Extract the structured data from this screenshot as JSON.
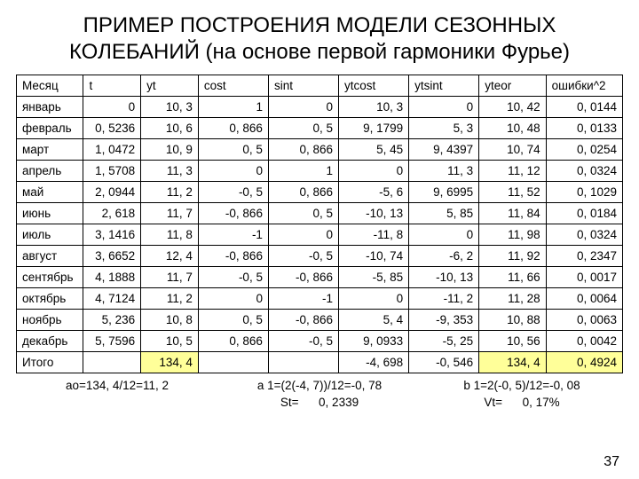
{
  "title": "ПРИМЕР ПОСТРОЕНИЯ МОДЕЛИ СЕЗОННЫХ КОЛЕБАНИЙ (на основе первой гармоники Фурье)",
  "page_number": "37",
  "table": {
    "columns": [
      "Месяц",
      "t",
      "yt",
      "cost",
      "sint",
      "ytcost",
      "ytsint",
      "yteor",
      "ошибки^2"
    ],
    "col_align": [
      "left",
      "right",
      "right",
      "right",
      "right",
      "right",
      "right",
      "right",
      "right"
    ],
    "rows": [
      [
        "январь",
        "0",
        "10, 3",
        "1",
        "0",
        "10, 3",
        "0",
        "10, 42",
        "0, 0144"
      ],
      [
        "февраль",
        "0, 5236",
        "10, 6",
        "0, 866",
        "0, 5",
        "9, 1799",
        "5, 3",
        "10, 48",
        "0, 0133"
      ],
      [
        "март",
        "1, 0472",
        "10, 9",
        "0, 5",
        "0, 866",
        "5, 45",
        "9, 4397",
        "10, 74",
        "0, 0254"
      ],
      [
        "апрель",
        "1, 5708",
        "11, 3",
        "0",
        "1",
        "0",
        "11, 3",
        "11, 12",
        "0, 0324"
      ],
      [
        "май",
        "2, 0944",
        "11, 2",
        "-0, 5",
        "0, 866",
        "-5, 6",
        "9, 6995",
        "11, 52",
        "0, 1029"
      ],
      [
        "июнь",
        "2, 618",
        "11, 7",
        "-0, 866",
        "0, 5",
        "-10, 13",
        "5, 85",
        "11, 84",
        "0, 0184"
      ],
      [
        "июль",
        "3, 1416",
        "11, 8",
        "-1",
        "0",
        "-11, 8",
        "0",
        "11, 98",
        "0, 0324"
      ],
      [
        "август",
        "3, 6652",
        "12, 4",
        "-0, 866",
        "-0, 5",
        "-10, 74",
        "-6, 2",
        "11, 92",
        "0, 2347"
      ],
      [
        "сентябрь",
        "4, 1888",
        "11, 7",
        "-0, 5",
        "-0, 866",
        "-5, 85",
        "-10, 13",
        "11, 66",
        "0, 0017"
      ],
      [
        "октябрь",
        "4, 7124",
        "11, 2",
        "0",
        "-1",
        "0",
        "-11, 2",
        "11, 28",
        "0, 0064"
      ],
      [
        "ноябрь",
        "5, 236",
        "10, 8",
        "0, 5",
        "-0, 866",
        "5, 4",
        "-9, 353",
        "10, 88",
        "0, 0063"
      ],
      [
        "декабрь",
        "5, 7596",
        "10, 5",
        "0, 866",
        "-0, 5",
        "9, 0933",
        "-5, 25",
        "10, 56",
        "0, 0042"
      ]
    ],
    "totals_row": [
      "Итого",
      "",
      "134, 4",
      "",
      "",
      "-4, 698",
      "-0, 546",
      "134, 4",
      "0, 4924"
    ],
    "highlight_cols": [
      2,
      7,
      8
    ],
    "highlight_color": "#ffff99"
  },
  "formulas": {
    "a0": "ao=134, 4/12=11, 2",
    "a1": "a 1=(2(-4, 7))/12=-0, 78",
    "b1": "b 1=2(-0, 5)/12=-0, 08",
    "st_label": "St=",
    "st_val": "0, 2339",
    "vt_label": "Vt=",
    "vt_val": "0, 17%"
  }
}
